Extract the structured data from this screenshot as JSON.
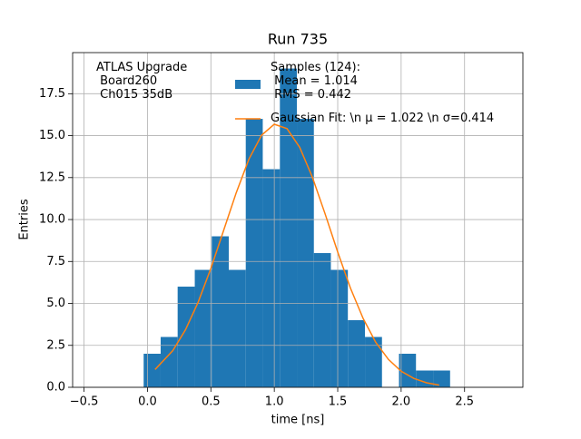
{
  "chart_data": {
    "type": "histogram",
    "title": "Run 735",
    "xlabel": "time [ns]",
    "ylabel": "Entries",
    "annotation": "ATLAS Upgrade\n Board260\n Ch015 35dB",
    "bins": [
      -0.03,
      0.104,
      0.238,
      0.373,
      0.507,
      0.641,
      0.775,
      0.909,
      1.044,
      1.178,
      1.312,
      1.446,
      1.58,
      1.715,
      1.849,
      1.983,
      2.117,
      2.252,
      2.386
    ],
    "series": [
      {
        "name": "Samples (124):\n Mean = 1.014\n RMS = 0.442",
        "color": "#1f77b4",
        "values": [
          2,
          3,
          6,
          7,
          9,
          7,
          16,
          13,
          19,
          16,
          8,
          7,
          4,
          3,
          0,
          2,
          1,
          1
        ]
      },
      {
        "name": "Gaussian Fit: \\n μ = 1.022 \\n σ=0.414",
        "color": "#ff7f0e",
        "type": "line",
        "x": [
          0.06,
          0.2,
          0.3,
          0.4,
          0.5,
          0.6,
          0.7,
          0.8,
          0.9,
          1.0,
          1.1,
          1.2,
          1.3,
          1.4,
          1.5,
          1.6,
          1.7,
          1.8,
          1.9,
          2.0,
          2.1,
          2.2,
          2.3
        ],
        "values": [
          1.06,
          2.19,
          3.43,
          5.08,
          7.09,
          9.34,
          11.6,
          13.6,
          15.03,
          15.68,
          15.42,
          14.31,
          12.53,
          10.35,
          8.06,
          5.92,
          4.11,
          2.68,
          1.66,
          0.96,
          0.53,
          0.27,
          0.13
        ]
      }
    ],
    "xlim": [
      -0.59,
      2.96
    ],
    "ylim": [
      0,
      19.95
    ],
    "xticks": [
      {
        "value": -0.5,
        "label": "−0.5"
      },
      {
        "value": 0,
        "label": "0.0"
      },
      0.5,
      {
        "value": 1,
        "label": "1.0"
      },
      1.5,
      {
        "value": 2,
        "label": "2.0"
      },
      2.5
    ],
    "yticks": [
      {
        "value": 0,
        "label": "0.0"
      },
      2.5,
      {
        "value": 5,
        "label": "5.0"
      },
      7.5,
      {
        "value": 10,
        "label": "10.0"
      },
      12.5,
      {
        "value": 15,
        "label": "15.0"
      },
      17.5
    ],
    "grid": true
  }
}
